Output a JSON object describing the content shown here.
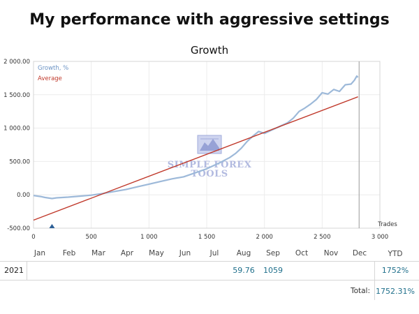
{
  "page": {
    "title": "My performance with aggressive settings"
  },
  "watermark": {
    "line1": "SIMPLE FOREX",
    "line2": "TOOLS",
    "icon": "bull-bear-logo-icon"
  },
  "chart_data": {
    "type": "line",
    "title": "Growth",
    "xlabel": "Trades",
    "ylabel": "",
    "xlim": [
      0,
      3000
    ],
    "ylim": [
      -500,
      2000
    ],
    "x_ticks": [
      0,
      500,
      1000,
      1500,
      2000,
      2500,
      3000
    ],
    "x_tick_labels": [
      "0",
      "500",
      "1 000",
      "1 500",
      "2 000",
      "2 500",
      "3 000"
    ],
    "y_ticks": [
      -500,
      0,
      500,
      1000,
      1500,
      2000
    ],
    "y_tick_labels": [
      "-500.00",
      "0.00",
      "500.00",
      "1 000.00",
      "1 500.00",
      "2 000.00"
    ],
    "grid": true,
    "legend": "top-left",
    "series": [
      {
        "name": "Growth, %",
        "color": "#9db9d9",
        "x": [
          0,
          60,
          100,
          160,
          200,
          300,
          400,
          500,
          600,
          700,
          800,
          900,
          1000,
          1100,
          1200,
          1300,
          1400,
          1500,
          1600,
          1700,
          1750,
          1800,
          1850,
          1900,
          1950,
          2000,
          2050,
          2100,
          2150,
          2200,
          2250,
          2300,
          2350,
          2400,
          2450,
          2500,
          2550,
          2600,
          2650,
          2700,
          2750,
          2780,
          2800,
          2810
        ],
        "y": [
          -10,
          -25,
          -40,
          -55,
          -45,
          -35,
          -20,
          -5,
          20,
          50,
          80,
          120,
          160,
          200,
          240,
          270,
          330,
          390,
          470,
          560,
          620,
          700,
          800,
          880,
          950,
          920,
          960,
          1000,
          1040,
          1080,
          1150,
          1250,
          1300,
          1360,
          1430,
          1530,
          1510,
          1580,
          1550,
          1650,
          1660,
          1720,
          1780,
          1760
        ]
      },
      {
        "name": "Average",
        "color": "#c0392b",
        "x": [
          0,
          2810
        ],
        "y": [
          -380,
          1470
        ]
      }
    ],
    "markers": [
      {
        "x": 160,
        "y": -500,
        "shape": "triangle",
        "color": "#2d5f96"
      }
    ],
    "vertical_line_x": 2820
  },
  "table": {
    "months": [
      "Jan",
      "Feb",
      "Mar",
      "Apr",
      "May",
      "Jun",
      "Jul",
      "Aug",
      "Sep",
      "Oct",
      "Nov",
      "Dec"
    ],
    "ytd_header": "YTD",
    "rows": [
      {
        "year": "2021",
        "aug": "59.76",
        "sep": "1059",
        "ytd": "1752%"
      }
    ],
    "total_label": "Total:",
    "total_value": "1752.31%"
  }
}
